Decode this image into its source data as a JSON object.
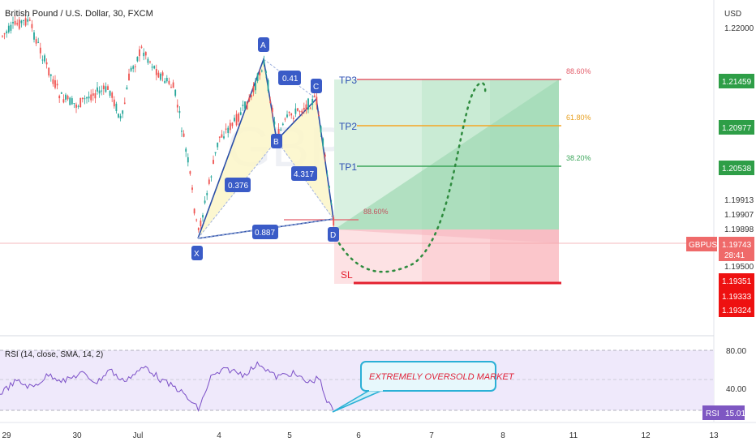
{
  "chart_data": {
    "type": "candlestick",
    "title": "British Pound / U.S. Dollar, 30, FXCM",
    "symbol": "GBPUSD",
    "currency_label": "USD",
    "x_ticks": [
      "29",
      "30",
      "Jul",
      "4",
      "5",
      "6",
      "7",
      "8",
      "11",
      "12",
      "13"
    ],
    "y_ticks": [
      "1.22000",
      "1.19913",
      "1.19907",
      "1.19898",
      "1.19500"
    ],
    "price_tags": [
      {
        "value": "1.21459",
        "color": "#2e9e47"
      },
      {
        "value": "1.20977",
        "color": "#2e9e47"
      },
      {
        "value": "1.20538",
        "color": "#2e9e47"
      },
      {
        "value": "1.19351",
        "color": "#ee1111"
      },
      {
        "value": "1.19333",
        "color": "#ee1111"
      },
      {
        "value": "1.19324",
        "color": "#ee1111"
      }
    ],
    "current_price": {
      "symbol": "GBPUSD",
      "value": "1.19743",
      "countdown": "28:41"
    },
    "harmonic_points": [
      "X",
      "A",
      "B",
      "C",
      "D"
    ],
    "ratios": [
      "0.41",
      "0.376",
      "4.317",
      "0.887"
    ],
    "targets": [
      {
        "label": "TP3",
        "fib": "88.60%",
        "line_color": "#e35d6a",
        "fib_color": "#e35d6a"
      },
      {
        "label": "TP2",
        "fib": "61.80%",
        "line_color": "#f5a623",
        "fib_color": "#e8a020"
      },
      {
        "label": "TP1",
        "fib": "38.20%",
        "line_color": "#3ca65b",
        "fib_color": "#3ca65b"
      }
    ],
    "entry_fib": "88.60%",
    "stop_label": "SL",
    "rsi": {
      "label": "RSI (14, close, SMA, 14, 2)",
      "levels": [
        "80.00",
        "40.00"
      ],
      "value": "15.01",
      "tag": "RSI",
      "annotation": "EXTREMELY OVERSOLD MARKET"
    }
  }
}
